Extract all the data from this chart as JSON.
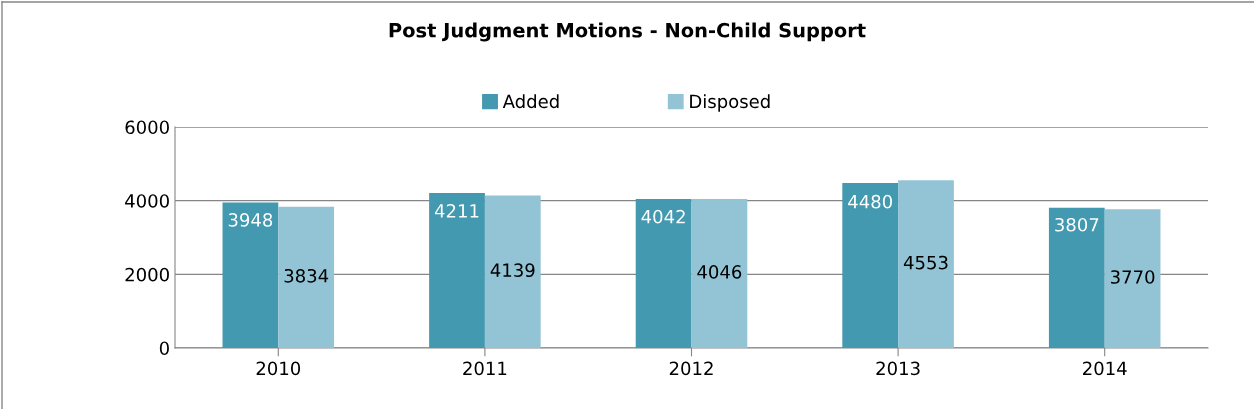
{
  "chart_data": {
    "type": "bar",
    "title": "Post Judgment Motions - Non-Child Support",
    "categories": [
      "2010",
      "2011",
      "2012",
      "2013",
      "2014"
    ],
    "series": [
      {
        "name": "Added",
        "color": "#4399b0",
        "values": [
          3948,
          4211,
          4042,
          4480,
          3807
        ]
      },
      {
        "name": "Disposed",
        "color": "#93c4d6",
        "values": [
          3834,
          4139,
          4046,
          4553,
          3770
        ]
      }
    ],
    "ylim": [
      0,
      6000
    ],
    "yticks": [
      0,
      2000,
      4000,
      6000
    ],
    "grid": "y",
    "legend": "top",
    "data_labels": true
  }
}
